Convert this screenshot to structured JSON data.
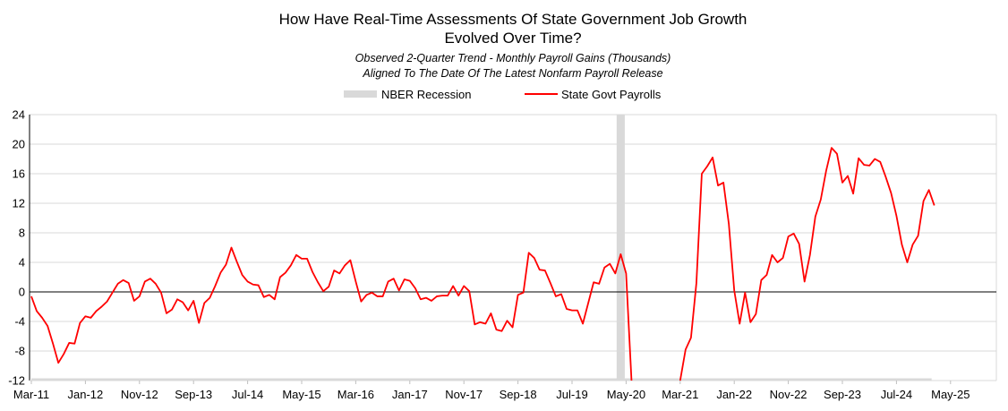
{
  "chart_data": {
    "type": "line",
    "title": "How Have Real-Time Assessments Of State Government Job Growth",
    "title_line2": "Evolved Over Time?",
    "subtitle": "Observed 2-Quarter Trend - Monthly Payroll Gains (Thousands)",
    "subtitle_line2": "Aligned To The Date Of The Latest Nonfarm Payroll Release",
    "xlabel": "",
    "ylabel": "",
    "ylim": [
      -12,
      24
    ],
    "yticks": [
      24,
      20,
      16,
      12,
      8,
      4,
      0,
      -4,
      -8,
      -12
    ],
    "x_start": "Mar-11",
    "x_range_months": [
      0,
      178
    ],
    "x_ticks": [
      {
        "label": "Mar-11",
        "month": 0
      },
      {
        "label": "Jan-12",
        "month": 10
      },
      {
        "label": "Nov-12",
        "month": 20
      },
      {
        "label": "Sep-13",
        "month": 30
      },
      {
        "label": "Jul-14",
        "month": 40
      },
      {
        "label": "May-15",
        "month": 50
      },
      {
        "label": "Mar-16",
        "month": 60
      },
      {
        "label": "Jan-17",
        "month": 70
      },
      {
        "label": "Nov-17",
        "month": 80
      },
      {
        "label": "Sep-18",
        "month": 90
      },
      {
        "label": "Jul-19",
        "month": 100
      },
      {
        "label": "May-20",
        "month": 110
      },
      {
        "label": "Mar-21",
        "month": 120
      },
      {
        "label": "Jan-22",
        "month": 130
      },
      {
        "label": "Nov-22",
        "month": 140
      },
      {
        "label": "Sep-23",
        "month": 150
      },
      {
        "label": "Jul-24",
        "month": 160
      },
      {
        "label": "May-25",
        "month": 170
      }
    ],
    "recessions": [
      {
        "start_month": 108,
        "end_month": 110
      }
    ],
    "legend": [
      {
        "label": "NBER Recession",
        "color": "#d9d9d9",
        "kind": "bar"
      },
      {
        "label": "State Govt Payrolls",
        "color": "#ff0000",
        "kind": "line"
      }
    ],
    "series": [
      {
        "name": "State Govt Payrolls",
        "color": "#ff0000",
        "segments": [
          {
            "start_month": 0,
            "values": [
              -0.6,
              -2.6,
              -3.5,
              -4.6,
              -7.0,
              -9.6,
              -8.4,
              -6.9,
              -7.0,
              -4.2,
              -3.3,
              -3.5,
              -2.6,
              -2.0,
              -1.3,
              -0.1,
              1.1,
              1.6,
              1.2,
              -1.2,
              -0.6,
              1.4,
              1.8,
              1.1,
              -0.1,
              -2.9,
              -2.4,
              -1.0,
              -1.4,
              -2.5,
              -1.2,
              -4.2,
              -1.5,
              -0.8,
              0.8,
              2.6,
              3.7,
              6.0,
              4.1,
              2.3,
              1.4,
              1.0,
              0.9,
              -0.7,
              -0.4,
              -1.0,
              2.0,
              2.6,
              3.6,
              5.0,
              4.5,
              4.5,
              2.7,
              1.3,
              0.1,
              0.7,
              2.9,
              2.5,
              3.6,
              4.3,
              1.4,
              -1.3,
              -0.4,
              -0.1,
              -0.6,
              -0.6,
              1.4,
              1.8,
              0.2,
              1.7,
              1.5,
              0.5,
              -1.0,
              -0.8,
              -1.2,
              -0.6,
              -0.5,
              -0.5,
              0.8,
              -0.5,
              0.8,
              0.1,
              -4.4,
              -4.1,
              -4.3,
              -2.9,
              -5.1,
              -5.3,
              -3.9,
              -4.8,
              -0.4,
              -0.1,
              5.3,
              4.6,
              3.0,
              2.9,
              1.2,
              -0.6,
              -0.3,
              -2.3,
              -2.5,
              -2.5,
              -4.3,
              -1.5,
              1.3,
              1.1,
              3.3,
              3.8,
              2.5,
              5.1,
              2.5,
              -12.0
            ]
          },
          {
            "start_month": 120,
            "values": [
              -12.0,
              -7.8,
              -6.2,
              1.2,
              16.0,
              17.0,
              18.2,
              14.4,
              14.8,
              9.2,
              0.2,
              -4.3,
              -0.1,
              -4.1,
              -3.0,
              1.6,
              2.3,
              5.0,
              4.0,
              4.6,
              7.5,
              7.9,
              6.5,
              1.4,
              5.0,
              10.2,
              12.5,
              16.4,
              19.5,
              18.7,
              14.8,
              15.7,
              13.3,
              18.1,
              17.2,
              17.1,
              18.0,
              17.6,
              15.6,
              13.4,
              10.3,
              6.4,
              4.0,
              6.4,
              7.6,
              12.3,
              13.8,
              11.7
            ]
          }
        ]
      }
    ]
  }
}
